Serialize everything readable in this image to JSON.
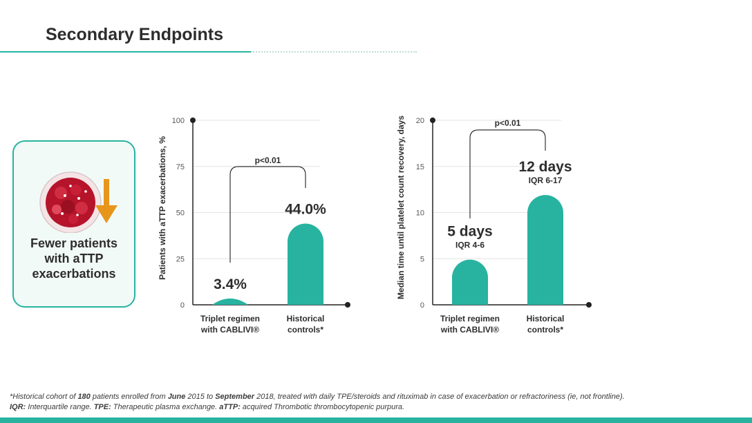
{
  "title": "Secondary Endpoints",
  "colors": {
    "accent": "#27b3a0",
    "arrow": "#e8961b",
    "text": "#2d2d2d"
  },
  "card": {
    "icon": "blood-cells-down-arrow-icon",
    "lines": [
      "Fewer patients",
      "with aTTP",
      "exacerbations"
    ]
  },
  "chart_data": [
    {
      "type": "bar",
      "ylabel": "Patients with aTTP exacerbations, %",
      "ylim": [
        0,
        100
      ],
      "yticks": [
        "0",
        "25",
        "50",
        "75",
        "100"
      ],
      "ytick_values": [
        0,
        25,
        50,
        75,
        100
      ],
      "categories": [
        [
          "Triplet regimen",
          "with CABLIVI®"
        ],
        [
          "Historical",
          "controls*"
        ]
      ],
      "values": [
        3.4,
        44.0
      ],
      "value_labels": [
        "3.4%",
        "44.0%"
      ],
      "sub_labels": [
        "",
        ""
      ],
      "significance": "p<0.01"
    },
    {
      "type": "bar",
      "ylabel": "Median time until platelet count recovery, days",
      "ylim": [
        0,
        20
      ],
      "yticks": [
        "0",
        "5",
        "10",
        "15",
        "20"
      ],
      "ytick_values": [
        0,
        5,
        10,
        15,
        20
      ],
      "categories": [
        [
          "Triplet regimen",
          "with CABLIVI®"
        ],
        [
          "Historical",
          "controls*"
        ]
      ],
      "values": [
        4.9,
        11.9
      ],
      "value_labels": [
        "5 days",
        "12 days"
      ],
      "sub_labels": [
        "IQR 4-6",
        "IQR 6-17"
      ],
      "significance": "p<0.01"
    }
  ],
  "footnote": {
    "line1": [
      {
        "t": "*Historical cohort of ",
        "b": false
      },
      {
        "t": "180",
        "b": true
      },
      {
        "t": " patients enrolled from ",
        "b": false
      },
      {
        "t": "June",
        "b": true
      },
      {
        "t": " 2015 to ",
        "b": false
      },
      {
        "t": "September",
        "b": true
      },
      {
        "t": " 2018, treated with daily TPE/steroids and rituximab in case of exacerbation or refractoriness (ie, not frontline).",
        "b": false
      }
    ],
    "line2": [
      {
        "t": "IQR:",
        "b": true
      },
      {
        "t": " Interquartile range. ",
        "b": false
      },
      {
        "t": "TPE:",
        "b": true
      },
      {
        "t": " Therapeutic plasma exchange. ",
        "b": false
      },
      {
        "t": "aTTP:",
        "b": true
      },
      {
        "t": " acquired Thrombotic thrombocytopenic purpura.",
        "b": false
      }
    ]
  }
}
